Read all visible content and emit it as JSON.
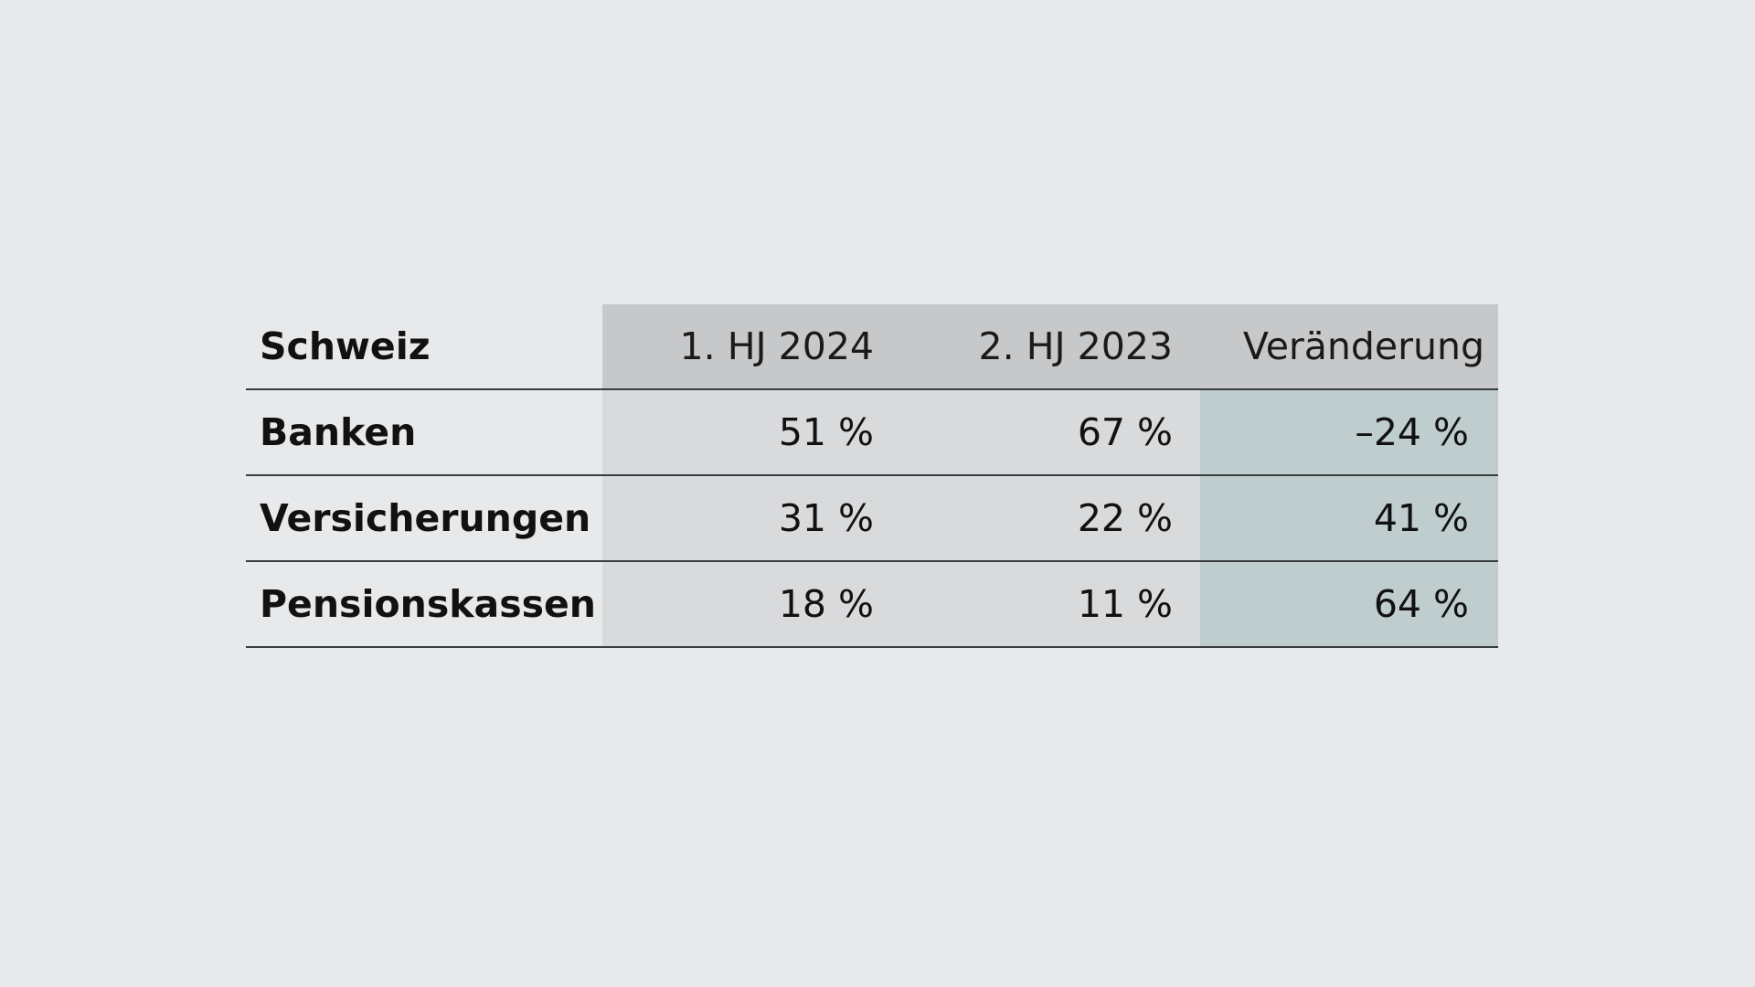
{
  "chart_data": {
    "type": "table",
    "corner_label": "Schweiz",
    "columns": [
      "1. HJ 2024",
      "2. HJ 2023",
      "Veränderung"
    ],
    "rows": [
      {
        "label": "Banken",
        "values": [
          "51 %",
          "67 %",
          "–24 %"
        ]
      },
      {
        "label": "Versicherungen",
        "values": [
          "31 %",
          "22 %",
          "41 %"
        ]
      },
      {
        "label": "Pensionskassen",
        "values": [
          "18 %",
          "11 %",
          "64 %"
        ]
      }
    ],
    "colors": {
      "background": "#e8e9eb",
      "header_fill": "#c7c8ca",
      "value_fill": "#d9dadc",
      "change_fill": "#bfcdcf",
      "rule": "#3a3d40"
    }
  }
}
